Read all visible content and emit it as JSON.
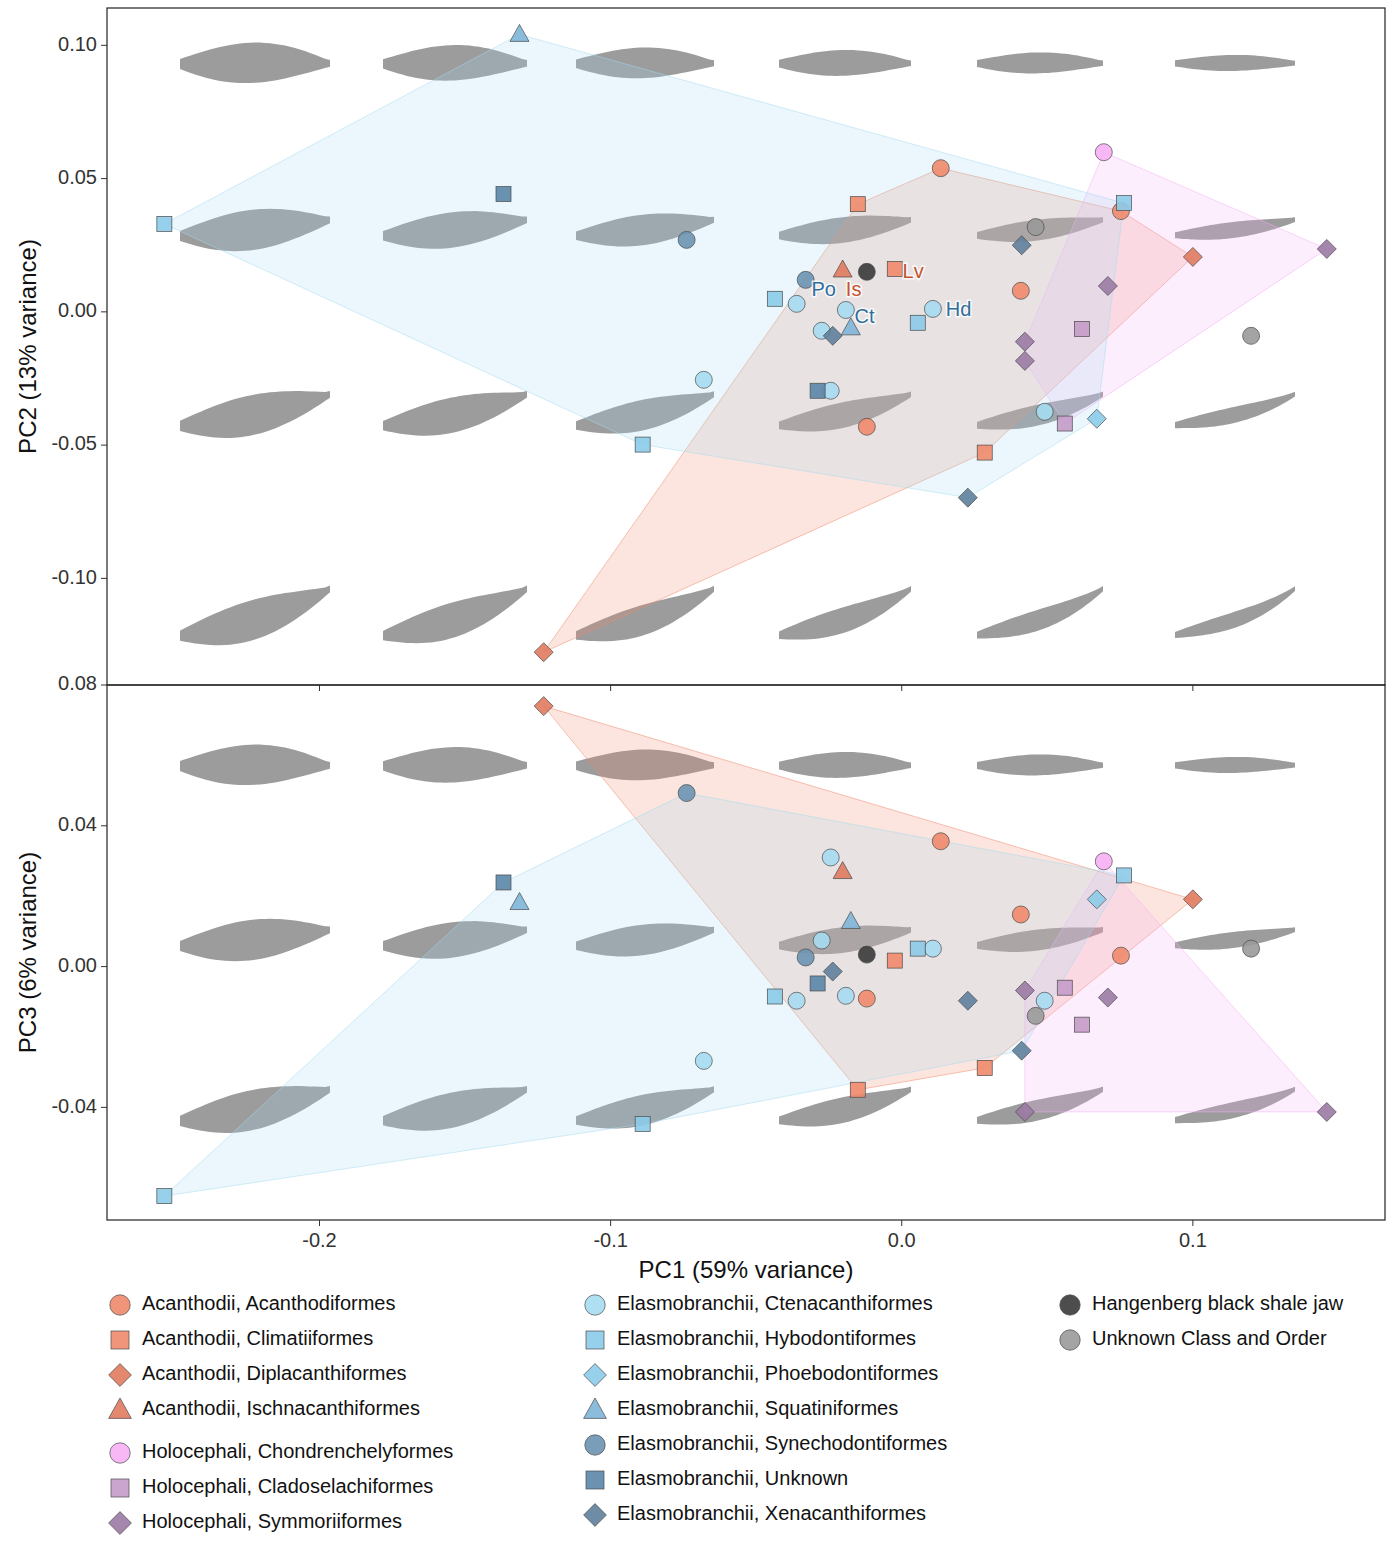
{
  "chart_data": [
    {
      "type": "scatter",
      "ylabel": "PC2 (13% variance)",
      "xlim": [
        -0.273,
        0.166
      ],
      "ylim": [
        -0.14,
        0.114
      ],
      "xticks": [
        -0.2,
        -0.1,
        {
          "value": 0,
          "label": "0.0"
        },
        0.1
      ],
      "yticks": [
        {
          "value": -0.1,
          "label": "-0.10"
        },
        {
          "value": -0.05,
          "label": "-0.05"
        },
        {
          "value": 0,
          "label": "0.00"
        },
        {
          "value": 0.05,
          "label": "0.05"
        },
        {
          "value": 0.1,
          "label": "0.10"
        }
      ],
      "tick_labels": "y",
      "grid": false,
      "series": [
        {
          "name": "Acanthodii, Acanthodiformes",
          "color": "#f08a6b",
          "marker": "circle",
          "x": [
            0.0134,
            0.0409,
            -0.012,
            0.0753
          ],
          "values": [
            0.0539,
            0.0079,
            -0.0431,
            0.0378
          ]
        },
        {
          "name": "Acanthodii, Climatiiformes",
          "color": "#f08a6b",
          "marker": "square",
          "x": [
            -0.0151,
            -0.0024,
            0.0285
          ],
          "values": [
            0.0404,
            0.0161,
            -0.0528
          ]
        },
        {
          "name": "Acanthodii, Diplacanthiformes",
          "color": "#e07a5f",
          "marker": "diamond",
          "x": [
            -0.123,
            0.1
          ],
          "values": [
            -0.1277,
            0.0206
          ]
        },
        {
          "name": "Acanthodii, Ischnacanthiformes",
          "color": "#e07a5f",
          "marker": "triangle",
          "x": [
            -0.0203
          ],
          "values": [
            0.0157
          ]
        },
        {
          "name": "Holocephali, Chondrenchelyformes",
          "color": "#f7b0f5",
          "marker": "circle",
          "x": [
            0.0694
          ],
          "values": [
            0.0599
          ]
        },
        {
          "name": "Holocephali, Cladoselachiformes",
          "color": "#c49bc8",
          "marker": "square",
          "x": [
            0.0619,
            0.056
          ],
          "values": [
            -0.0064,
            -0.0419
          ]
        },
        {
          "name": "Holocephali, Symmoriiformes",
          "color": "#9b7aa4",
          "marker": "diamond",
          "x": [
            0.146,
            0.0708,
            0.0423,
            0.0423
          ],
          "values": [
            0.0236,
            0.0097,
            -0.0112,
            -0.0184
          ]
        },
        {
          "name": "Elasmobranchii, Ctenacanthiformes",
          "color": "#a6dcf2",
          "marker": "circle",
          "x": [
            -0.0361,
            -0.0275,
            -0.0244,
            -0.068,
            0.0491,
            0.0107,
            -0.0192
          ],
          "values": [
            0.003,
            -0.0071,
            -0.0296,
            -0.0255,
            -0.0375,
            0.0011,
            0.0007
          ]
        },
        {
          "name": "Elasmobranchii, Hybodontiformes",
          "color": "#8ccbe9",
          "marker": "square",
          "x": [
            -0.2533,
            -0.0436,
            -0.089,
            0.0055,
            0.0763
          ],
          "values": [
            0.033,
            0.0049,
            -0.0498,
            -0.0041,
            0.0408
          ]
        },
        {
          "name": "Elasmobranchii, Phoebodontiformes",
          "color": "#8ccbe9",
          "marker": "diamond",
          "x": [
            0.067
          ],
          "values": [
            -0.0401
          ]
        },
        {
          "name": "Elasmobranchii, Squatiniformes",
          "color": "#7fb5d8",
          "marker": "triangle",
          "x": [
            -0.1313,
            -0.0175
          ],
          "values": [
            0.1041,
            -0.006
          ]
        },
        {
          "name": "Elasmobranchii, Synechodontiformes",
          "color": "#6b93b3",
          "marker": "circle",
          "x": [
            -0.0739,
            -0.033
          ],
          "values": [
            0.027,
            0.012
          ]
        },
        {
          "name": "Elasmobranchii, Unknown",
          "color": "#5b86a8",
          "marker": "square",
          "x": [
            -0.1368,
            -0.0289
          ],
          "values": [
            0.0442,
            -0.0296
          ]
        },
        {
          "name": "Elasmobranchii, Xenacanthiformes",
          "color": "#5f7f9c",
          "marker": "diamond",
          "x": [
            -0.0237,
            0.0227,
            0.0412
          ],
          "values": [
            -0.009,
            -0.0697,
            0.025
          ]
        },
        {
          "name": "Hangenberg black shale jaw",
          "color": "#3a3a3a",
          "marker": "circle",
          "x": [
            -0.012
          ],
          "values": [
            0.015
          ]
        },
        {
          "name": "Unknown Class and Order",
          "color": "#9a9a9a",
          "marker": "circle",
          "x": [
            0.046,
            0.12
          ],
          "values": [
            0.0318,
            -0.009
          ]
        }
      ],
      "annotations": [
        {
          "text": "Po",
          "x": -0.031,
          "y": 0.0079,
          "color": "#2e6f9e"
        },
        {
          "text": "Is",
          "x": -0.0192,
          "y": 0.0079,
          "color": "#c4532d"
        },
        {
          "text": "Lv",
          "x": 0.0003,
          "y": 0.0146,
          "color": "#c4532d"
        },
        {
          "text": "Ct",
          "x": -0.0162,
          "y": -0.0022,
          "color": "#2e6f9e"
        },
        {
          "text": "Hd",
          "x": 0.0151,
          "y": 0.0004,
          "color": "#2e6f9e"
        }
      ]
    },
    {
      "type": "scatter",
      "xlabel": "PC1 (59% variance)",
      "ylabel": "PC3 (6% variance)",
      "xlim": [
        -0.273,
        0.166
      ],
      "ylim": [
        -0.072,
        0.08
      ],
      "xticks": [
        -0.2,
        -0.1,
        {
          "value": 0,
          "label": "0.0"
        },
        0.1
      ],
      "yticks": [
        {
          "value": -0.04,
          "label": "-0.04"
        },
        {
          "value": 0,
          "label": "0.00"
        },
        {
          "value": 0.04,
          "label": "0.04"
        },
        {
          "value": 0.08,
          "label": "0.08"
        }
      ],
      "grid": false,
      "legend": "bottom",
      "series": [
        {
          "name": "Acanthodii, Acanthodiformes",
          "color": "#f08a6b",
          "marker": "circle",
          "x": [
            0.0134,
            0.0409,
            -0.012,
            0.0753
          ],
          "values": [
            0.0356,
            0.0148,
            -0.0091,
            0.0031
          ]
        },
        {
          "name": "Acanthodii, Climatiiformes",
          "color": "#f08a6b",
          "marker": "square",
          "x": [
            -0.0151,
            -0.0024,
            0.0285
          ],
          "values": [
            -0.035,
            0.0017,
            -0.0288
          ]
        },
        {
          "name": "Acanthodii, Diplacanthiformes",
          "color": "#e07a5f",
          "marker": "diamond",
          "x": [
            -0.123,
            0.1
          ],
          "values": [
            0.074,
            0.0191
          ]
        },
        {
          "name": "Acanthodii, Ischnacanthiformes",
          "color": "#e07a5f",
          "marker": "triangle",
          "x": [
            -0.0203
          ],
          "values": [
            0.027
          ]
        },
        {
          "name": "Holocephali, Chondrenchelyformes",
          "color": "#f7b0f5",
          "marker": "circle",
          "x": [
            0.0694
          ],
          "values": [
            0.0299
          ]
        },
        {
          "name": "Holocephali, Cladoselachiformes",
          "color": "#c49bc8",
          "marker": "square",
          "x": [
            0.0619,
            0.056
          ],
          "values": [
            -0.0165,
            -0.006
          ]
        },
        {
          "name": "Holocephali, Symmoriiformes",
          "color": "#9b7aa4",
          "marker": "diamond",
          "x": [
            0.146,
            0.0708,
            0.0423,
            0.0423
          ],
          "values": [
            -0.0413,
            -0.0088,
            -0.0068,
            -0.0413
          ]
        },
        {
          "name": "Elasmobranchii, Ctenacanthiformes",
          "color": "#a6dcf2",
          "marker": "circle",
          "x": [
            -0.0361,
            -0.0275,
            -0.0244,
            -0.068,
            0.0491,
            0.0107,
            -0.0192
          ],
          "values": [
            -0.0097,
            0.0074,
            0.031,
            -0.0268,
            -0.0097,
            0.0051,
            -0.0083
          ]
        },
        {
          "name": "Elasmobranchii, Hybodontiformes",
          "color": "#8ccbe9",
          "marker": "square",
          "x": [
            -0.2533,
            -0.0436,
            -0.089,
            0.0055,
            0.0763
          ],
          "values": [
            -0.0652,
            -0.0085,
            -0.0447,
            0.0051,
            0.0259
          ]
        },
        {
          "name": "Elasmobranchii, Phoebodontiformes",
          "color": "#8ccbe9",
          "marker": "diamond",
          "x": [
            0.067
          ],
          "values": [
            0.0191
          ]
        },
        {
          "name": "Elasmobranchii, Squatiniformes",
          "color": "#7fb5d8",
          "marker": "triangle",
          "x": [
            -0.1313,
            -0.0175
          ],
          "values": [
            0.0182,
            0.0128
          ]
        },
        {
          "name": "Elasmobranchii, Synechodontiformes",
          "color": "#6b93b3",
          "marker": "circle",
          "x": [
            -0.0739,
            -0.033
          ],
          "values": [
            0.0493,
            0.0026
          ]
        },
        {
          "name": "Elasmobranchii, Unknown",
          "color": "#5b86a8",
          "marker": "square",
          "x": [
            -0.1368,
            -0.0289
          ],
          "values": [
            0.0239,
            -0.0048
          ]
        },
        {
          "name": "Elasmobranchii, Xenacanthiformes",
          "color": "#5f7f9c",
          "marker": "diamond",
          "x": [
            -0.0237,
            0.0227,
            0.0412
          ],
          "values": [
            -0.0014,
            -0.0097,
            -0.0239
          ]
        },
        {
          "name": "Hangenberg black shale jaw",
          "color": "#3a3a3a",
          "marker": "circle",
          "x": [
            -0.012
          ],
          "values": [
            0.0034
          ]
        },
        {
          "name": "Unknown Class and Order",
          "color": "#9a9a9a",
          "marker": "circle",
          "x": [
            0.046,
            0.12
          ],
          "values": [
            -0.014,
            0.0051
          ]
        }
      ]
    }
  ]
}
